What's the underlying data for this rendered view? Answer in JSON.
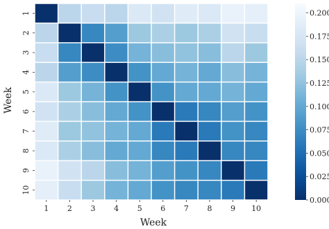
{
  "chart_data": {
    "type": "heatmap",
    "title": "",
    "xlabel": "Week",
    "ylabel": "Week",
    "x_categories": [
      "1",
      "2",
      "3",
      "4",
      "5",
      "6",
      "7",
      "8",
      "9",
      "10"
    ],
    "y_categories": [
      "1",
      "2",
      "3",
      "4",
      "5",
      "6",
      "7",
      "8",
      "9",
      "10"
    ],
    "values": [
      [
        0.0,
        0.15,
        0.16,
        0.15,
        0.18,
        0.17,
        0.185,
        0.18,
        0.195,
        0.19
      ],
      [
        0.15,
        0.0,
        0.07,
        0.09,
        0.13,
        0.14,
        0.13,
        0.14,
        0.17,
        0.16
      ],
      [
        0.16,
        0.07,
        0.0,
        0.075,
        0.11,
        0.12,
        0.125,
        0.12,
        0.15,
        0.13
      ],
      [
        0.15,
        0.09,
        0.075,
        0.0,
        0.08,
        0.1,
        0.11,
        0.1,
        0.12,
        0.11
      ],
      [
        0.18,
        0.13,
        0.11,
        0.08,
        0.0,
        0.08,
        0.1,
        0.1,
        0.11,
        0.1
      ],
      [
        0.17,
        0.14,
        0.12,
        0.1,
        0.08,
        0.0,
        0.06,
        0.07,
        0.09,
        0.08
      ],
      [
        0.185,
        0.13,
        0.125,
        0.11,
        0.1,
        0.06,
        0.0,
        0.06,
        0.08,
        0.07
      ],
      [
        0.18,
        0.14,
        0.12,
        0.1,
        0.1,
        0.07,
        0.06,
        0.0,
        0.07,
        0.07
      ],
      [
        0.195,
        0.17,
        0.15,
        0.12,
        0.11,
        0.09,
        0.08,
        0.07,
        0.0,
        0.06
      ],
      [
        0.19,
        0.16,
        0.13,
        0.11,
        0.1,
        0.08,
        0.07,
        0.07,
        0.06,
        0.0
      ]
    ],
    "colormap": "Blues_r",
    "colorbar": {
      "vmin": 0.0,
      "vmax": 0.21,
      "ticks": [
        "0.000",
        "0.025",
        "0.050",
        "0.075",
        "0.100",
        "0.125",
        "0.150",
        "0.175",
        "0.200"
      ]
    },
    "grid": true,
    "cell_separator_color": "#ffffff"
  }
}
